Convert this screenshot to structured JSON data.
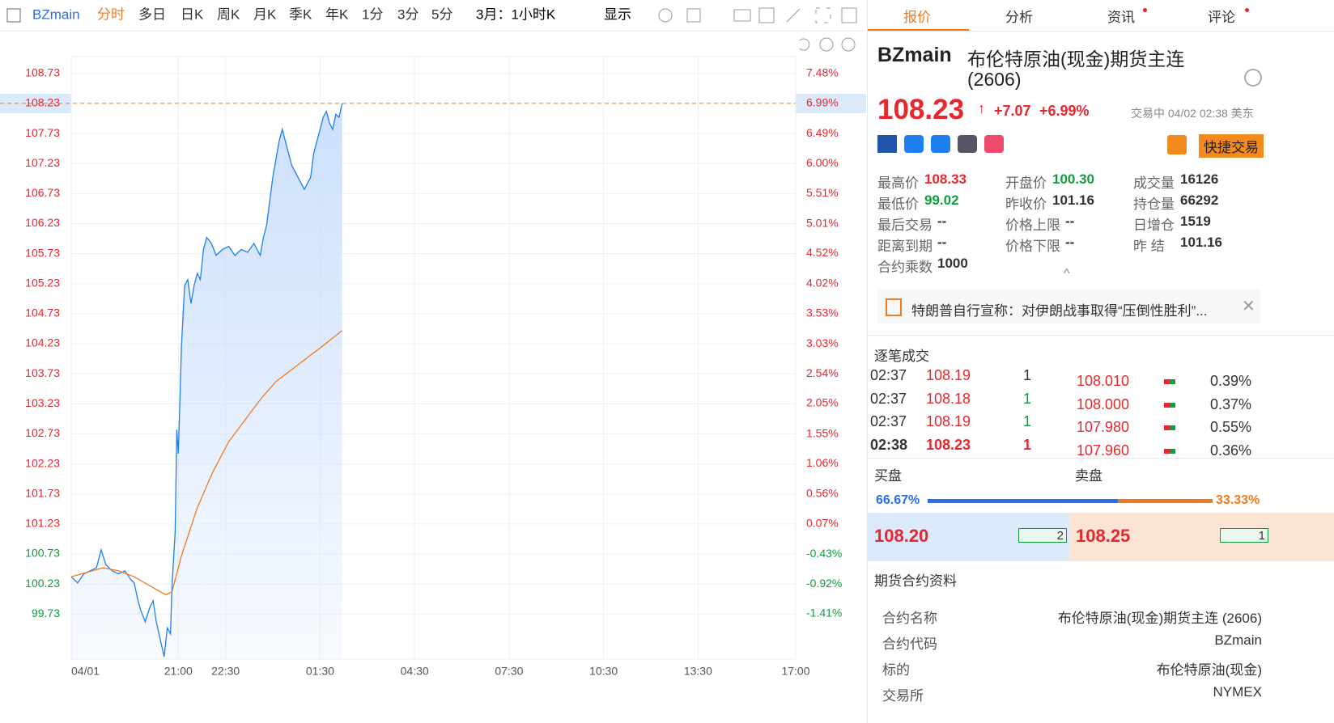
{
  "toolbar": {
    "symbol": "BZmain",
    "tabs": [
      "分时",
      "多日",
      "日K",
      "周K",
      "月K",
      "季K",
      "年K",
      "1分",
      "3分",
      "5分"
    ],
    "period": "3月：1小时K",
    "display": "显示"
  },
  "chart_data": {
    "type": "line",
    "x_axis": {
      "xlim": [
        0,
        23
      ],
      "xticks": [
        {
          "value": 0,
          "label": "04/01"
        },
        {
          "value": 3.4,
          "label": "21:00"
        },
        {
          "value": 4.9,
          "label": "22:30"
        },
        {
          "value": 7.9,
          "label": "01:30"
        },
        {
          "value": 10.9,
          "label": "04:30"
        },
        {
          "value": 13.9,
          "label": "07:30"
        },
        {
          "value": 16.9,
          "label": "10:30"
        },
        {
          "value": 19.9,
          "label": "13:30"
        },
        {
          "value": 23,
          "label": "17:00"
        }
      ]
    },
    "ylim": [
      98.98,
      109.01
    ],
    "yticks": [
      108.73,
      108.23,
      107.73,
      107.23,
      106.73,
      106.23,
      105.73,
      105.23,
      104.73,
      104.23,
      103.73,
      103.23,
      102.73,
      102.23,
      101.73,
      101.23,
      100.73,
      100.23,
      99.73
    ],
    "y2lim": [
      -2.155,
      7.76
    ],
    "y2ticks": [
      {
        "value": 7.48,
        "label": "7.48%"
      },
      {
        "value": 6.99,
        "label": "6.99%"
      },
      {
        "value": 6.49,
        "label": "6.49%"
      },
      {
        "value": 6,
        "label": "6.00%"
      },
      {
        "value": 5.51,
        "label": "5.51%"
      },
      {
        "value": 5.01,
        "label": "5.01%"
      },
      {
        "value": 4.52,
        "label": "4.52%"
      },
      {
        "value": 4.02,
        "label": "4.02%"
      },
      {
        "value": 3.53,
        "label": "3.53%"
      },
      {
        "value": 3.03,
        "label": "3.03%"
      },
      {
        "value": 2.54,
        "label": "2.54%"
      },
      {
        "value": 2.05,
        "label": "2.05%"
      },
      {
        "value": 1.55,
        "label": "1.55%"
      },
      {
        "value": 1.06,
        "label": "1.06%"
      },
      {
        "value": 0.56,
        "label": "0.56%"
      },
      {
        "value": 0.07,
        "label": "0.07%"
      },
      {
        "value": -0.43,
        "label": "-0.43%"
      },
      {
        "value": -0.92,
        "label": "-0.92%"
      },
      {
        "value": -1.41,
        "label": "-1.41%"
      }
    ],
    "last_price": 108.23,
    "grid": true,
    "up_color": "#e8262d",
    "down_color": "#0e9f3c",
    "series": [
      {
        "color": "#1e7ff0",
        "area": true,
        "x": [
          0,
          0.2,
          0.4,
          0.6,
          0.8,
          0.95,
          1.1,
          1.3,
          1.5,
          1.7,
          1.9,
          2.0,
          2.1,
          2.2,
          2.35,
          2.5,
          2.6,
          2.7,
          2.85,
          2.95,
          3.05,
          3.15,
          3.2,
          3.3,
          3.35,
          3.4,
          3.5,
          3.6,
          3.7,
          3.8,
          3.9,
          4.0,
          4.1,
          4.2,
          4.3,
          4.45,
          4.6,
          4.8,
          5.0,
          5.2,
          5.4,
          5.6,
          5.8,
          6.0,
          6.1,
          6.2,
          6.3,
          6.4,
          6.5,
          6.6,
          6.7,
          6.8,
          6.9,
          7.0,
          7.1,
          7.2,
          7.3,
          7.4,
          7.5,
          7.6,
          7.7,
          7.8,
          7.9,
          8.0,
          8.1,
          8.2,
          8.3,
          8.4,
          8.5,
          8.6
        ],
        "values": [
          100.35,
          100.25,
          100.4,
          100.45,
          100.5,
          100.8,
          100.55,
          100.45,
          100.4,
          100.45,
          100.3,
          100.25,
          100.0,
          99.8,
          99.6,
          99.85,
          99.95,
          99.6,
          99.25,
          99.02,
          99.5,
          99.4,
          100.2,
          101.1,
          102.8,
          102.4,
          104.2,
          105.2,
          105.3,
          104.9,
          105.2,
          105.4,
          105.3,
          105.8,
          106.0,
          105.9,
          105.7,
          105.8,
          105.85,
          105.7,
          105.8,
          105.75,
          105.9,
          105.7,
          106.0,
          106.2,
          106.6,
          107.0,
          107.3,
          107.6,
          107.8,
          107.6,
          107.4,
          107.2,
          107.1,
          107.0,
          106.9,
          106.8,
          106.9,
          107.0,
          107.4,
          107.6,
          107.8,
          108.0,
          108.1,
          107.9,
          107.8,
          108.05,
          108.0,
          108.23
        ]
      },
      {
        "color": "#f07a1e",
        "area": false,
        "x": [
          0,
          1,
          1.5,
          2,
          2.5,
          3,
          3.2,
          3.5,
          4,
          4.5,
          5,
          5.5,
          6,
          6.5,
          7,
          7.5,
          8,
          8.6
        ],
        "values": [
          100.35,
          100.5,
          100.45,
          100.35,
          100.2,
          100.05,
          100.1,
          100.7,
          101.5,
          102.1,
          102.6,
          102.95,
          103.3,
          103.6,
          103.8,
          104.0,
          104.2,
          104.45
        ]
      }
    ]
  },
  "panel": {
    "tabs": [
      "报价",
      "分析",
      "资讯",
      "评论"
    ],
    "symbol": "BZmain",
    "name": "布伦特原油(现金)期货主连",
    "code": "(2606)",
    "price": "108.23",
    "change": "+7.07",
    "change_pct": "+6.99%",
    "status": "交易中 04/02 02:38 美东",
    "trade_button": "快捷交易",
    "stats": [
      {
        "label": "最高价",
        "value": "108.33",
        "color": "#e8262d"
      },
      {
        "label": "开盘价",
        "value": "100.30",
        "color": "#0e9f3c"
      },
      {
        "label": "成交量",
        "value": "16126",
        "color": "#333"
      },
      {
        "label": "最低价",
        "value": "99.02",
        "color": "#0e9f3c"
      },
      {
        "label": "昨收价",
        "value": "101.16",
        "color": "#333"
      },
      {
        "label": "持仓量",
        "value": "66292",
        "color": "#333"
      },
      {
        "label": "最后交易",
        "value": "--",
        "color": "#333"
      },
      {
        "label": "价格上限",
        "value": "--",
        "color": "#333"
      },
      {
        "label": "日增仓",
        "value": "1519",
        "color": "#333"
      },
      {
        "label": "距离到期",
        "value": "--",
        "color": "#333"
      },
      {
        "label": "价格下限",
        "value": "--",
        "color": "#333"
      },
      {
        "label": "昨 结",
        "value": "101.16",
        "color": "#333"
      },
      {
        "label": "合约乘数",
        "value": "1000",
        "color": "#333"
      }
    ],
    "news": "特朗普自行宣称：对伊朗战事取得“压倒性胜利”...",
    "trades_title": "逐笔成交",
    "trades": [
      {
        "time": "02:37",
        "price": "108.19",
        "qty": "1",
        "color": "#333"
      },
      {
        "time": "02:37",
        "price": "108.18",
        "qty": "1",
        "color": "#0e9f3c"
      },
      {
        "time": "02:37",
        "price": "108.19",
        "qty": "1",
        "color": "#0e9f3c"
      },
      {
        "time": "02:38",
        "price": "108.23",
        "qty": "1",
        "color": "#e8262d"
      }
    ],
    "depth": [
      {
        "price": "108.010",
        "pct": "0.39%"
      },
      {
        "price": "108.000",
        "pct": "0.37%"
      },
      {
        "price": "107.980",
        "pct": "0.55%"
      },
      {
        "price": "107.960",
        "pct": "0.36%"
      }
    ],
    "buy_title": "买盘",
    "sell_title": "卖盘",
    "buy_ratio": 66.67,
    "buy_label": "66.67%",
    "sell_ratio": 33.33,
    "sell_label": "33.33%",
    "bid": "108.20",
    "bid_qty": "2",
    "ask": "108.25",
    "ask_qty": "1",
    "info_title": "期货合约资料",
    "info": [
      {
        "label": "合约名称",
        "value": "布伦特原油(现金)期货主连 (2606)"
      },
      {
        "label": "合约代码",
        "value": "BZmain"
      },
      {
        "label": "标的",
        "value": "布伦特原油(现金)"
      },
      {
        "label": "交易所",
        "value": "NYMEX"
      }
    ]
  }
}
